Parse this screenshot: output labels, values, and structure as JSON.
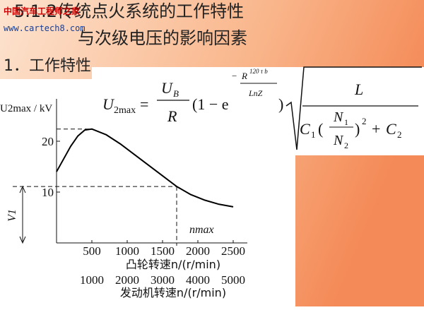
{
  "slide": {
    "heading": "5.1.2传统点火系统的工作特性",
    "heading_line2": "与次级电压的影响因素",
    "section": "1．工作特性",
    "watermark": "中国汽车工程师之家",
    "watermark_url": "www.cartech8.com"
  },
  "formula": {
    "lhs": "U",
    "lhs_sub": "2max",
    "eq": "=",
    "num": "U",
    "num_sub": "B",
    "den": "R",
    "open": "(1 − e",
    "exp_minus": "−",
    "exp_num": "R",
    "exp_sup": "120 τ b",
    "exp_den": "LnZ",
    "close": ")",
    "root_num": "L",
    "c1": "C",
    "c1_sub": "1",
    "lp": "(",
    "n1": "N",
    "n1_sub": "1",
    "n2": "N",
    "n2_sub": "2",
    "rp": ")",
    "sq": "2",
    "plus": "+",
    "c2": "C",
    "c2_sub": "2"
  },
  "chart_data": {
    "type": "line",
    "y_label": "U2max / kV",
    "x_label": "凸轮转速n/(r/min)",
    "x2_label": "发动机转速n/(r/min)",
    "x": [
      0,
      100,
      200,
      300,
      400,
      500,
      700,
      900,
      1100,
      1300,
      1500,
      1700,
      1900,
      2100,
      2300,
      2500
    ],
    "series": [
      {
        "name": "U2max",
        "color": "#000000",
        "values": [
          14.0,
          16.5,
          19.0,
          21.0,
          22.2,
          22.4,
          21.3,
          19.5,
          17.4,
          15.3,
          13.2,
          11.1,
          9.5,
          8.4,
          7.6,
          7.1
        ]
      }
    ],
    "xlim": [
      0,
      2700
    ],
    "ylim": [
      0,
      27
    ],
    "xticks": [
      500,
      1000,
      1500,
      2000,
      2500
    ],
    "yticks": [
      10,
      20
    ],
    "x2ticks": [
      1000,
      2000,
      3000,
      4000,
      5000
    ],
    "peak_x": 500,
    "peak_value": 22.4,
    "nmax_x": 1700,
    "v1_level": 11.1,
    "nmax_label": "nmax",
    "v1_label": "V1"
  }
}
